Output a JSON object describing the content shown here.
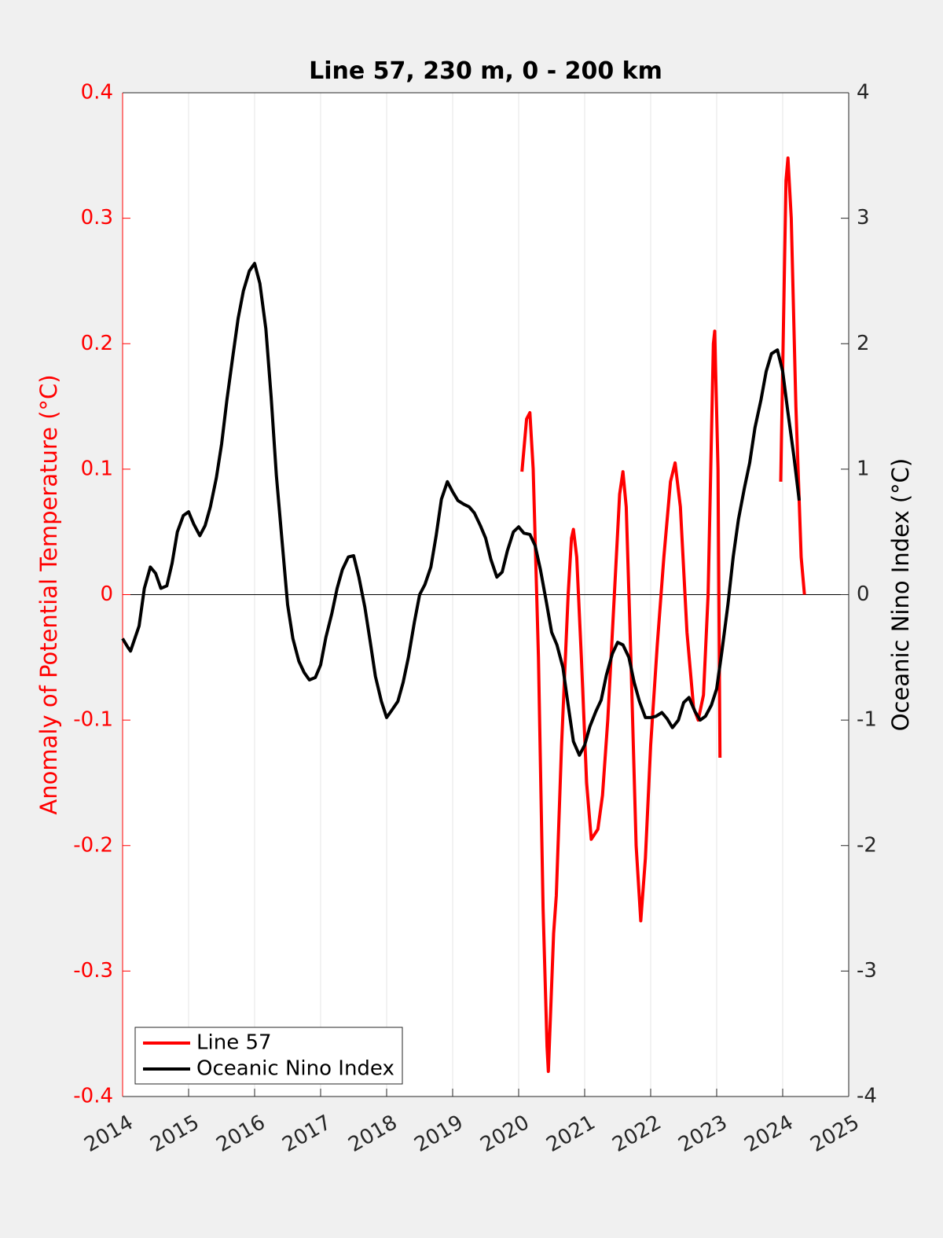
{
  "chart_data": {
    "type": "line",
    "title": "Line 57, 230 m, 0 - 200 km",
    "ylabel": "Anomaly of Potential Temperature (°C)",
    "y2label": "Oceanic Nino Index (°C)",
    "xlim": [
      2014,
      2025
    ],
    "xticks": [
      2014,
      2015,
      2016,
      2017,
      2018,
      2019,
      2020,
      2021,
      2022,
      2023,
      2024,
      2025
    ],
    "ylim": [
      -0.4,
      0.4
    ],
    "yticks": [
      -0.4,
      -0.3,
      -0.2,
      -0.1,
      0,
      0.1,
      0.2,
      0.3,
      0.4
    ],
    "y2lim": [
      -4,
      4
    ],
    "y2ticks": [
      -4,
      -3,
      -2,
      -1,
      0,
      1,
      2,
      3,
      4
    ],
    "grid": true,
    "legend": "lower-left",
    "ylabel_color": "#ff0000",
    "series": [
      {
        "name": "Line 57",
        "color": "#ff0000",
        "axis": "y",
        "x": [
          2020.05,
          2020.12,
          2020.17,
          2020.22,
          2020.3,
          2020.37,
          2020.43,
          2020.45,
          2020.53,
          2020.57,
          2020.65,
          2020.75,
          2020.8,
          2020.83,
          2020.88,
          2020.95,
          2021.03,
          2021.1,
          2021.2,
          2021.27,
          2021.35,
          2021.45,
          2021.53,
          2021.58,
          2021.63,
          2021.7,
          2021.78,
          2021.85,
          2021.92,
          2022.0,
          2022.1,
          2022.2,
          2022.3,
          2022.37,
          2022.45,
          2022.55,
          2022.65,
          2022.72,
          2022.8,
          2022.87,
          2022.95,
          2022.97,
          2023.02,
          2023.05,
          2023.5,
          2023.97,
          2024.05,
          2024.08,
          2024.13,
          2024.2,
          2024.28,
          2024.33
        ],
        "values": [
          0.098,
          0.14,
          0.145,
          0.1,
          -0.05,
          -0.25,
          -0.36,
          -0.38,
          -0.27,
          -0.24,
          -0.12,
          0.0,
          0.045,
          0.052,
          0.03,
          -0.05,
          -0.15,
          -0.195,
          -0.187,
          -0.16,
          -0.1,
          0.0,
          0.08,
          0.098,
          0.07,
          -0.05,
          -0.2,
          -0.26,
          -0.21,
          -0.12,
          -0.04,
          0.03,
          0.09,
          0.105,
          0.07,
          -0.03,
          -0.09,
          -0.1,
          -0.08,
          0.0,
          0.2,
          0.21,
          0.1,
          -0.13,
          null,
          0.09,
          0.33,
          0.348,
          0.3,
          0.15,
          0.03,
          0.0
        ]
      },
      {
        "name": "Oceanic Nino Index",
        "color": "#000000",
        "axis": "y2",
        "x": [
          2014.0,
          2014.08,
          2014.12,
          2014.25,
          2014.33,
          2014.42,
          2014.5,
          2014.58,
          2014.67,
          2014.75,
          2014.83,
          2014.92,
          2015.0,
          2015.08,
          2015.17,
          2015.25,
          2015.33,
          2015.42,
          2015.5,
          2015.58,
          2015.67,
          2015.75,
          2015.83,
          2015.92,
          2016.0,
          2016.08,
          2016.17,
          2016.25,
          2016.33,
          2016.42,
          2016.5,
          2016.58,
          2016.67,
          2016.75,
          2016.83,
          2016.92,
          2017.0,
          2017.08,
          2017.17,
          2017.25,
          2017.33,
          2017.42,
          2017.5,
          2017.58,
          2017.67,
          2017.75,
          2017.83,
          2017.92,
          2018.0,
          2018.08,
          2018.17,
          2018.25,
          2018.33,
          2018.42,
          2018.5,
          2018.58,
          2018.67,
          2018.75,
          2018.83,
          2018.92,
          2019.0,
          2019.08,
          2019.17,
          2019.25,
          2019.33,
          2019.42,
          2019.5,
          2019.58,
          2019.67,
          2019.75,
          2019.83,
          2019.92,
          2020.0,
          2020.08,
          2020.17,
          2020.25,
          2020.33,
          2020.42,
          2020.5,
          2020.58,
          2020.67,
          2020.75,
          2020.83,
          2020.92,
          2021.0,
          2021.08,
          2021.17,
          2021.25,
          2021.33,
          2021.42,
          2021.5,
          2021.58,
          2021.67,
          2021.75,
          2021.83,
          2021.92,
          2022.0,
          2022.08,
          2022.17,
          2022.25,
          2022.33,
          2022.42,
          2022.5,
          2022.58,
          2022.67,
          2022.75,
          2022.83,
          2022.92,
          2023.0,
          2023.08,
          2023.17,
          2023.25,
          2023.33,
          2023.42,
          2023.5,
          2023.58,
          2023.67,
          2023.75,
          2023.83,
          2023.92,
          2024.0,
          2024.08,
          2024.17,
          2024.25
        ],
        "values": [
          -0.35,
          -0.42,
          -0.45,
          -0.25,
          0.05,
          0.22,
          0.17,
          0.05,
          0.07,
          0.25,
          0.5,
          0.63,
          0.66,
          0.56,
          0.47,
          0.55,
          0.7,
          0.93,
          1.2,
          1.55,
          1.9,
          2.2,
          2.42,
          2.58,
          2.64,
          2.48,
          2.12,
          1.58,
          0.95,
          0.4,
          -0.08,
          -0.35,
          -0.53,
          -0.62,
          -0.68,
          -0.66,
          -0.56,
          -0.34,
          -0.15,
          0.05,
          0.2,
          0.3,
          0.31,
          0.14,
          -0.1,
          -0.37,
          -0.65,
          -0.85,
          -0.98,
          -0.92,
          -0.85,
          -0.7,
          -0.5,
          -0.22,
          0.0,
          0.08,
          0.22,
          0.47,
          0.76,
          0.9,
          0.82,
          0.75,
          0.72,
          0.7,
          0.65,
          0.55,
          0.45,
          0.28,
          0.14,
          0.18,
          0.35,
          0.5,
          0.54,
          0.49,
          0.48,
          0.39,
          0.2,
          -0.06,
          -0.3,
          -0.4,
          -0.58,
          -0.88,
          -1.17,
          -1.28,
          -1.2,
          -1.05,
          -0.93,
          -0.84,
          -0.64,
          -0.47,
          -0.38,
          -0.4,
          -0.5,
          -0.7,
          -0.85,
          -0.98,
          -0.98,
          -0.97,
          -0.94,
          -0.99,
          -1.06,
          -1.0,
          -0.86,
          -0.82,
          -0.93,
          -1.0,
          -0.97,
          -0.88,
          -0.75,
          -0.45,
          -0.08,
          0.3,
          0.6,
          0.85,
          1.05,
          1.33,
          1.55,
          1.78,
          1.92,
          1.95,
          1.78,
          1.45,
          1.1,
          0.75
        ]
      }
    ]
  }
}
